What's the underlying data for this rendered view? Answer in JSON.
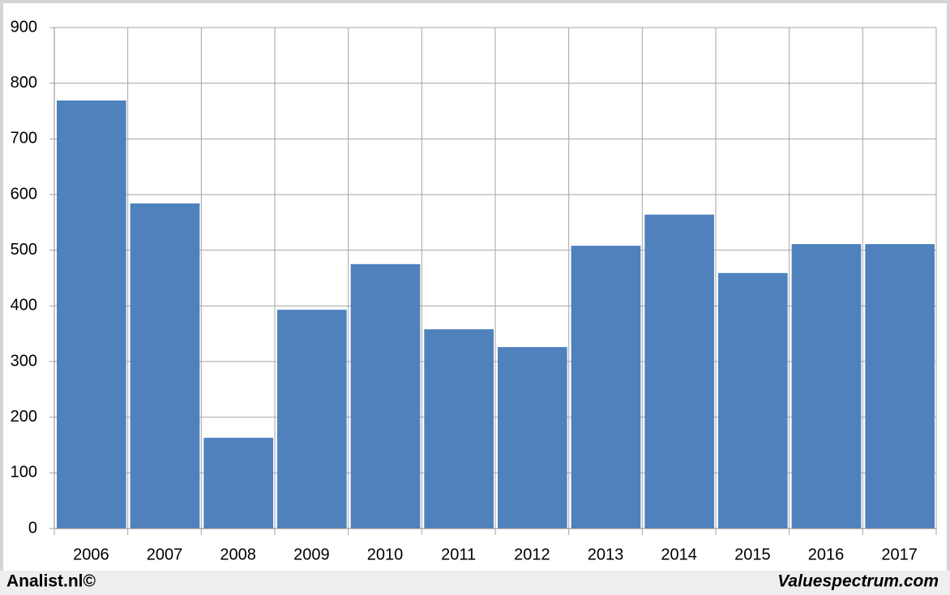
{
  "chart_data": {
    "type": "bar",
    "categories": [
      "2006",
      "2007",
      "2008",
      "2009",
      "2010",
      "2011",
      "2012",
      "2013",
      "2014",
      "2015",
      "2016",
      "2017"
    ],
    "values": [
      769,
      584,
      163,
      393,
      475,
      358,
      326,
      508,
      564,
      459,
      511,
      511
    ],
    "color": "#4f81bd",
    "ylim": [
      0,
      900
    ],
    "yticks": [
      0,
      100,
      200,
      300,
      400,
      500,
      600,
      700,
      800,
      900
    ],
    "grid": true
  },
  "footer": {
    "left": "Analist.nl©",
    "right": "Valuespectrum.com"
  }
}
